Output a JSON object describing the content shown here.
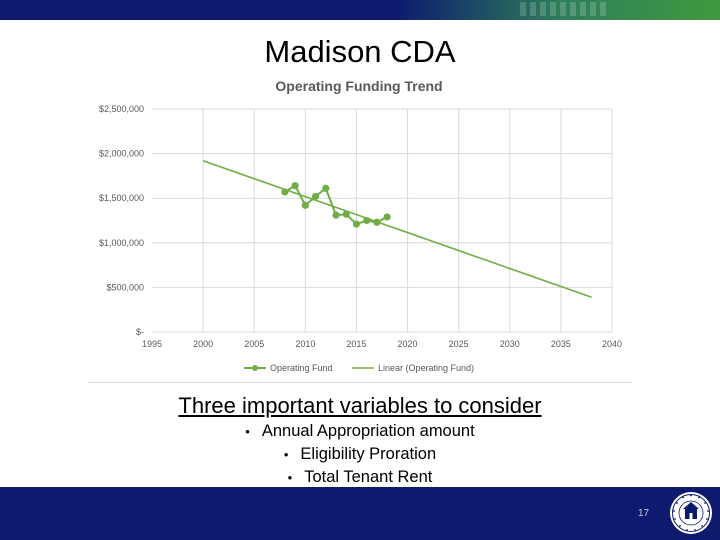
{
  "slide": {
    "title": "Madison CDA",
    "subheading": "Three important variables to consider",
    "bullets": [
      "Annual Appropriation amount",
      "Eligibility Proration",
      "Total Tenant Rent"
    ],
    "page_number": "17"
  },
  "colors": {
    "header_navy": "#0d1a6e",
    "header_green": "#3f9a3f",
    "series_green": "#70ad47",
    "footer_navy": "#0d1a6e"
  },
  "icons": {
    "seal": "hud-seal-icon",
    "bullet": "bullet-dot-icon"
  },
  "chart_data": {
    "type": "line",
    "title": "Operating Funding Trend",
    "xlabel": "",
    "ylabel": "",
    "xlim": [
      1995,
      2040
    ],
    "ylim": [
      0,
      2500000
    ],
    "x_ticks": [
      1995,
      2000,
      2005,
      2010,
      2015,
      2020,
      2025,
      2030,
      2035,
      2040
    ],
    "y_ticks": [
      0,
      500000,
      1000000,
      1500000,
      2000000,
      2500000
    ],
    "x_tick_labels": [
      "1995",
      "2000",
      "2005",
      "2010",
      "2015",
      "2020",
      "2025",
      "2030",
      "2035",
      "2040"
    ],
    "y_tick_labels": [
      "$-",
      "$500,000",
      "$1,000,000",
      "$1,500,000",
      "$2,000,000",
      "$2,500,000"
    ],
    "grid": true,
    "legend_position": "bottom",
    "series": [
      {
        "name": "Operating Fund",
        "style": "line-markers",
        "x": [
          2008,
          2009,
          2010,
          2011,
          2012,
          2013,
          2014,
          2015,
          2016,
          2017,
          2018
        ],
        "y": [
          1570000,
          1640000,
          1420000,
          1520000,
          1610000,
          1310000,
          1320000,
          1210000,
          1250000,
          1230000,
          1290000
        ]
      },
      {
        "name": "Linear (Operating Fund)",
        "style": "trendline",
        "x": [
          2000,
          2038
        ],
        "y": [
          1920000,
          390000
        ]
      }
    ]
  }
}
